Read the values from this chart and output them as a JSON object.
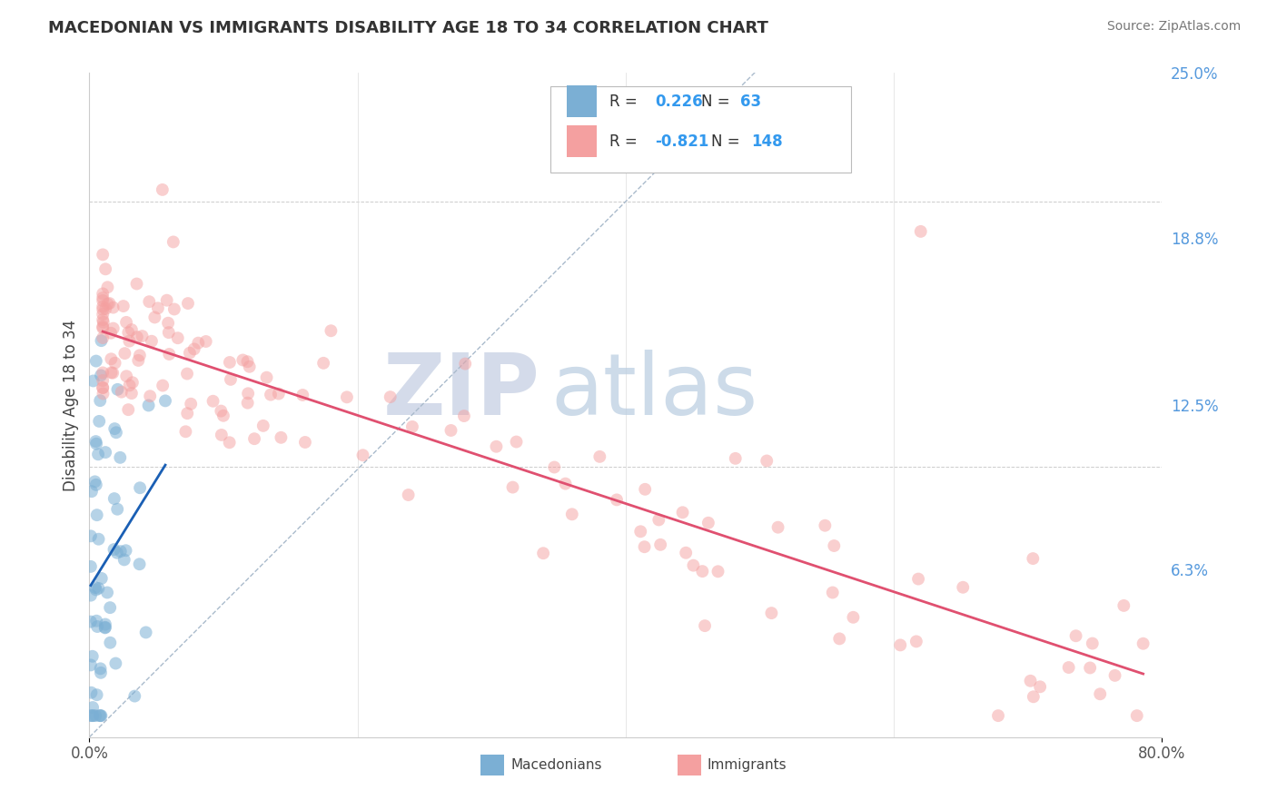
{
  "title": "MACEDONIAN VS IMMIGRANTS DISABILITY AGE 18 TO 34 CORRELATION CHART",
  "source": "Source: ZipAtlas.com",
  "ylabel": "Disability Age 18 to 34",
  "xlim": [
    0.0,
    0.8
  ],
  "ylim": [
    0.0,
    0.155
  ],
  "xtick_labels": [
    "0.0%",
    "80.0%"
  ],
  "xtick_positions": [
    0.0,
    0.8
  ],
  "ytick_right_labels": [
    "6.3%",
    "12.5%",
    "18.8%",
    "25.0%"
  ],
  "ytick_right_positions": [
    0.063,
    0.125,
    0.188,
    0.25
  ],
  "macedonian_color": "#7BAFD4",
  "immigrant_color": "#F4A0A0",
  "trend_blue": "#1a5fb4",
  "trend_pink": "#e05070",
  "diag_color": "#aabbcc",
  "grid_color": "#cccccc",
  "background_color": "#ffffff",
  "legend_R_macedonian": "0.226",
  "legend_N_macedonian": "63",
  "legend_R_immigrant": "-0.821",
  "legend_N_immigrant": "148",
  "watermark_zip": "ZIP",
  "watermark_atlas": "atlas",
  "mac_seed": 77,
  "imm_seed": 42
}
